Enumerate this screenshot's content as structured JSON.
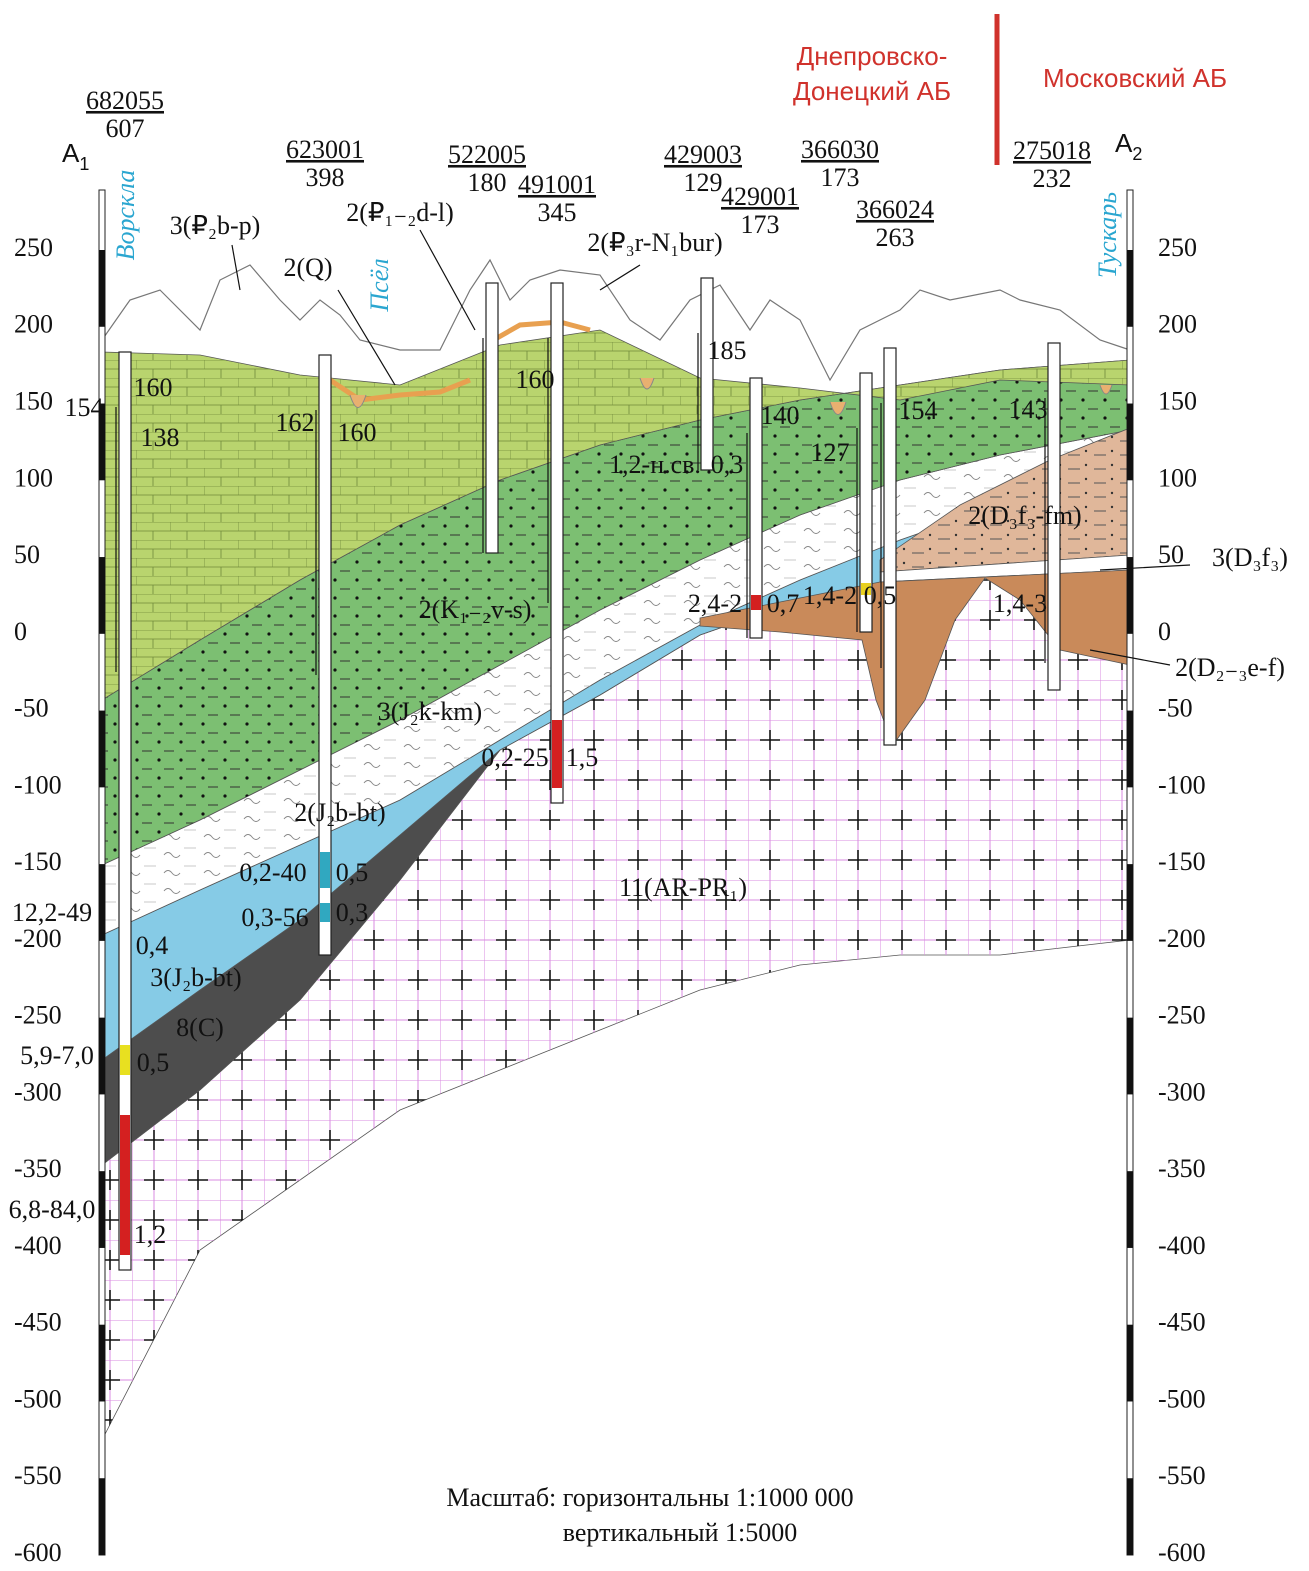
{
  "header": {
    "basin_left": [
      "Днепровско-",
      "Донецкий АБ"
    ],
    "basin_right": "Московский АБ"
  },
  "section_ends": [
    {
      "letter": "A",
      "index": "1"
    },
    {
      "letter": "A",
      "index": "2"
    }
  ],
  "elevation_axis": {
    "ticks": [
      250,
      200,
      150,
      100,
      50,
      0,
      -50,
      -100,
      -150,
      -200,
      -250,
      -300,
      -350,
      -400,
      -450,
      -500,
      -550,
      -600
    ]
  },
  "rivers": [
    "Ворскла",
    "Псёл",
    "Тускарь"
  ],
  "wells": [
    {
      "id": "682055",
      "value": "607"
    },
    {
      "id": "623001",
      "value": "398"
    },
    {
      "id": "522005",
      "value": "180"
    },
    {
      "id": "491001",
      "value": "345"
    },
    {
      "id": "429003",
      "value": "129"
    },
    {
      "id": "429001",
      "value": "173"
    },
    {
      "id": "366030",
      "value": "173"
    },
    {
      "id": "366024",
      "value": "263"
    },
    {
      "id": "275018",
      "value": "232"
    }
  ],
  "layers": [
    "3(₽₂b-p)",
    "2(Q)",
    "2(₽₁₋₂d-l)",
    "2(₽₃r-N₁bur)",
    "2(K₁₋₂v-s)",
    "3(J₂k-km)",
    "2(J₂b-bt)",
    "3(J₂b-bt)",
    "8(C)",
    "11(AR-PR₁)",
    "2(D₃f₃-fm)",
    "3(D₃f₃)",
    "2(D₂₋₃e-f)"
  ],
  "annotations": [
    "160",
    "154",
    "138",
    "162",
    "160",
    "160",
    "185",
    "1,2-н.св.",
    "0,3",
    "140",
    "127",
    "154",
    "143",
    "2,4-2",
    "0,7",
    "1,4-2",
    "0,5",
    "1,4-3",
    "0,2-25",
    "1,5",
    "0,2-40",
    "0,5",
    "0,3-56",
    "0,3",
    "12,2-49",
    "0,4",
    "5,9-7,0",
    "0,5",
    "6,8-84,0",
    "1,2"
  ],
  "scale": [
    "Масштаб: горизонтальны 1:1000 000",
    "вертикальный 1:5000"
  ]
}
